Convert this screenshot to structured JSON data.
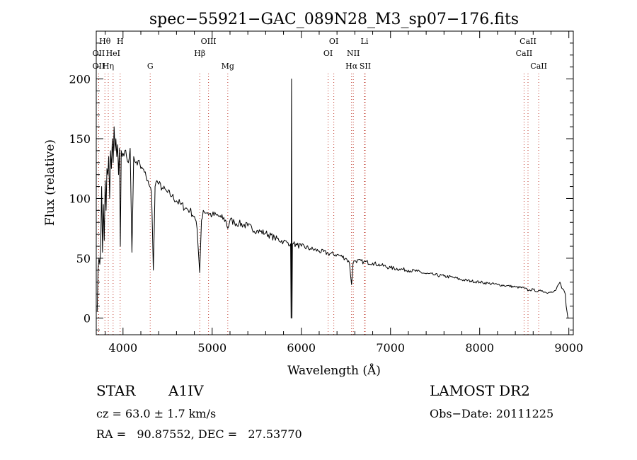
{
  "chart_data": {
    "type": "line",
    "title": "spec−55921−GAC_089N28_M3_sp07−176.fits",
    "xlabel": "Wavelength (Å)",
    "ylabel": "Flux (relative)",
    "xlim": [
      3700,
      9050
    ],
    "ylim": [
      -14,
      240
    ],
    "xticks": [
      4000,
      5000,
      6000,
      7000,
      8000,
      9000
    ],
    "xtick_labels": [
      "4000",
      "5000",
      "6000",
      "7000",
      "8000",
      "9000"
    ],
    "yticks": [
      0,
      50,
      100,
      150,
      200
    ],
    "ytick_labels": [
      "0",
      "50",
      "100",
      "150",
      "200"
    ],
    "grid": false,
    "legend": "none",
    "line_color": "#000000",
    "marker_color": "#c0392b",
    "series": [
      {
        "x": [
          3710,
          3720,
          3730,
          3740,
          3750,
          3760,
          3770,
          3780,
          3790,
          3800,
          3810,
          3820,
          3830,
          3840,
          3850,
          3860,
          3870,
          3880,
          3890,
          3900,
          3910,
          3920,
          3930,
          3940,
          3950,
          3960,
          3970,
          3980,
          3990,
          4000,
          4020,
          4040,
          4060,
          4080,
          4100,
          4120,
          4140,
          4160,
          4180,
          4200,
          4220,
          4240,
          4260,
          4280,
          4300,
          4320,
          4340,
          4360,
          4380,
          4400,
          4450,
          4500,
          4550,
          4600,
          4650,
          4700,
          4750,
          4800,
          4830,
          4850,
          4860,
          4870,
          4880,
          4900,
          4950,
          5000,
          5050,
          5100,
          5150,
          5175,
          5200,
          5250,
          5300,
          5400,
          5500,
          5600,
          5700,
          5800,
          5850,
          5880,
          5885,
          5890,
          5895,
          5900,
          5910,
          5950,
          6000,
          6100,
          6200,
          6300,
          6400,
          6500,
          6540,
          6563,
          6580,
          6600,
          6700,
          6800,
          6900,
          7000,
          7100,
          7200,
          7300,
          7400,
          7500,
          7600,
          7700,
          7800,
          7900,
          8000,
          8100,
          8200,
          8300,
          8400,
          8500,
          8550,
          8600,
          8650,
          8700,
          8750,
          8800,
          8850,
          8900,
          8920,
          8940,
          8960,
          8970,
          8980,
          8990,
          9000
        ],
        "y": [
          5,
          40,
          50,
          45,
          60,
          110,
          55,
          95,
          65,
          115,
          90,
          125,
          120,
          135,
          100,
          140,
          125,
          150,
          130,
          160,
          140,
          150,
          135,
          145,
          120,
          142,
          60,
          140,
          135,
          138,
          140,
          135,
          130,
          142,
          55,
          135,
          130,
          128,
          132,
          125,
          125,
          122,
          118,
          115,
          110,
          105,
          40,
          110,
          115,
          112,
          108,
          105,
          102,
          98,
          95,
          92,
          90,
          85,
          75,
          50,
          38,
          60,
          82,
          90,
          88,
          86,
          86,
          84,
          82,
          75,
          82,
          80,
          79,
          77,
          73,
          71,
          67,
          64,
          63,
          62,
          0,
          200,
          0,
          62,
          62,
          61,
          60,
          58,
          56,
          54,
          53,
          50,
          46,
          28,
          46,
          48,
          47,
          46,
          44,
          42,
          41,
          40,
          39,
          37,
          36,
          35,
          34,
          32,
          31,
          30,
          29,
          28,
          27,
          26,
          25,
          23,
          24,
          22,
          23,
          21,
          22,
          23,
          30,
          25,
          24,
          20,
          10,
          5,
          0,
          0
        ]
      }
    ],
    "line_markers": [
      {
        "label": "Hθ",
        "x": 3797,
        "row": 0
      },
      {
        "label": "H",
        "x": 3968,
        "row": 0
      },
      {
        "label": "OII",
        "x": 3727,
        "row": 1
      },
      {
        "label": "HeI",
        "x": 3889,
        "row": 1
      },
      {
        "label": "OII",
        "x": 3727,
        "row": 2
      },
      {
        "label": "Hη",
        "x": 3835,
        "row": 2
      },
      {
        "label": "G",
        "x": 4305,
        "row": 2
      },
      {
        "label": "OIII",
        "x": 4959,
        "row": 0
      },
      {
        "label": "Hβ",
        "x": 4861,
        "row": 1
      },
      {
        "label": "Mg",
        "x": 5175,
        "row": 2
      },
      {
        "label": "OI",
        "x": 6364,
        "row": 0
      },
      {
        "label": "OI",
        "x": 6300,
        "row": 1
      },
      {
        "label": "Li",
        "x": 6708,
        "row": 0
      },
      {
        "label": "NII",
        "x": 6583,
        "row": 1
      },
      {
        "label": "Hα",
        "x": 6563,
        "row": 2
      },
      {
        "label": "SII",
        "x": 6716,
        "row": 2
      },
      {
        "label": "CaII",
        "x": 8542,
        "row": 0
      },
      {
        "label": "CaII",
        "x": 8498,
        "row": 1
      },
      {
        "label": "CaII",
        "x": 8662,
        "row": 2
      }
    ]
  },
  "info": {
    "object_class": "STAR",
    "subclass": "A1IV",
    "survey": "LAMOST DR2",
    "cz": "cz = 63.0 ± 1.7 km/s",
    "obs_date": "Obs−Date: 20111225",
    "coords": "RA =   90.87552, DEC =   27.53770"
  }
}
